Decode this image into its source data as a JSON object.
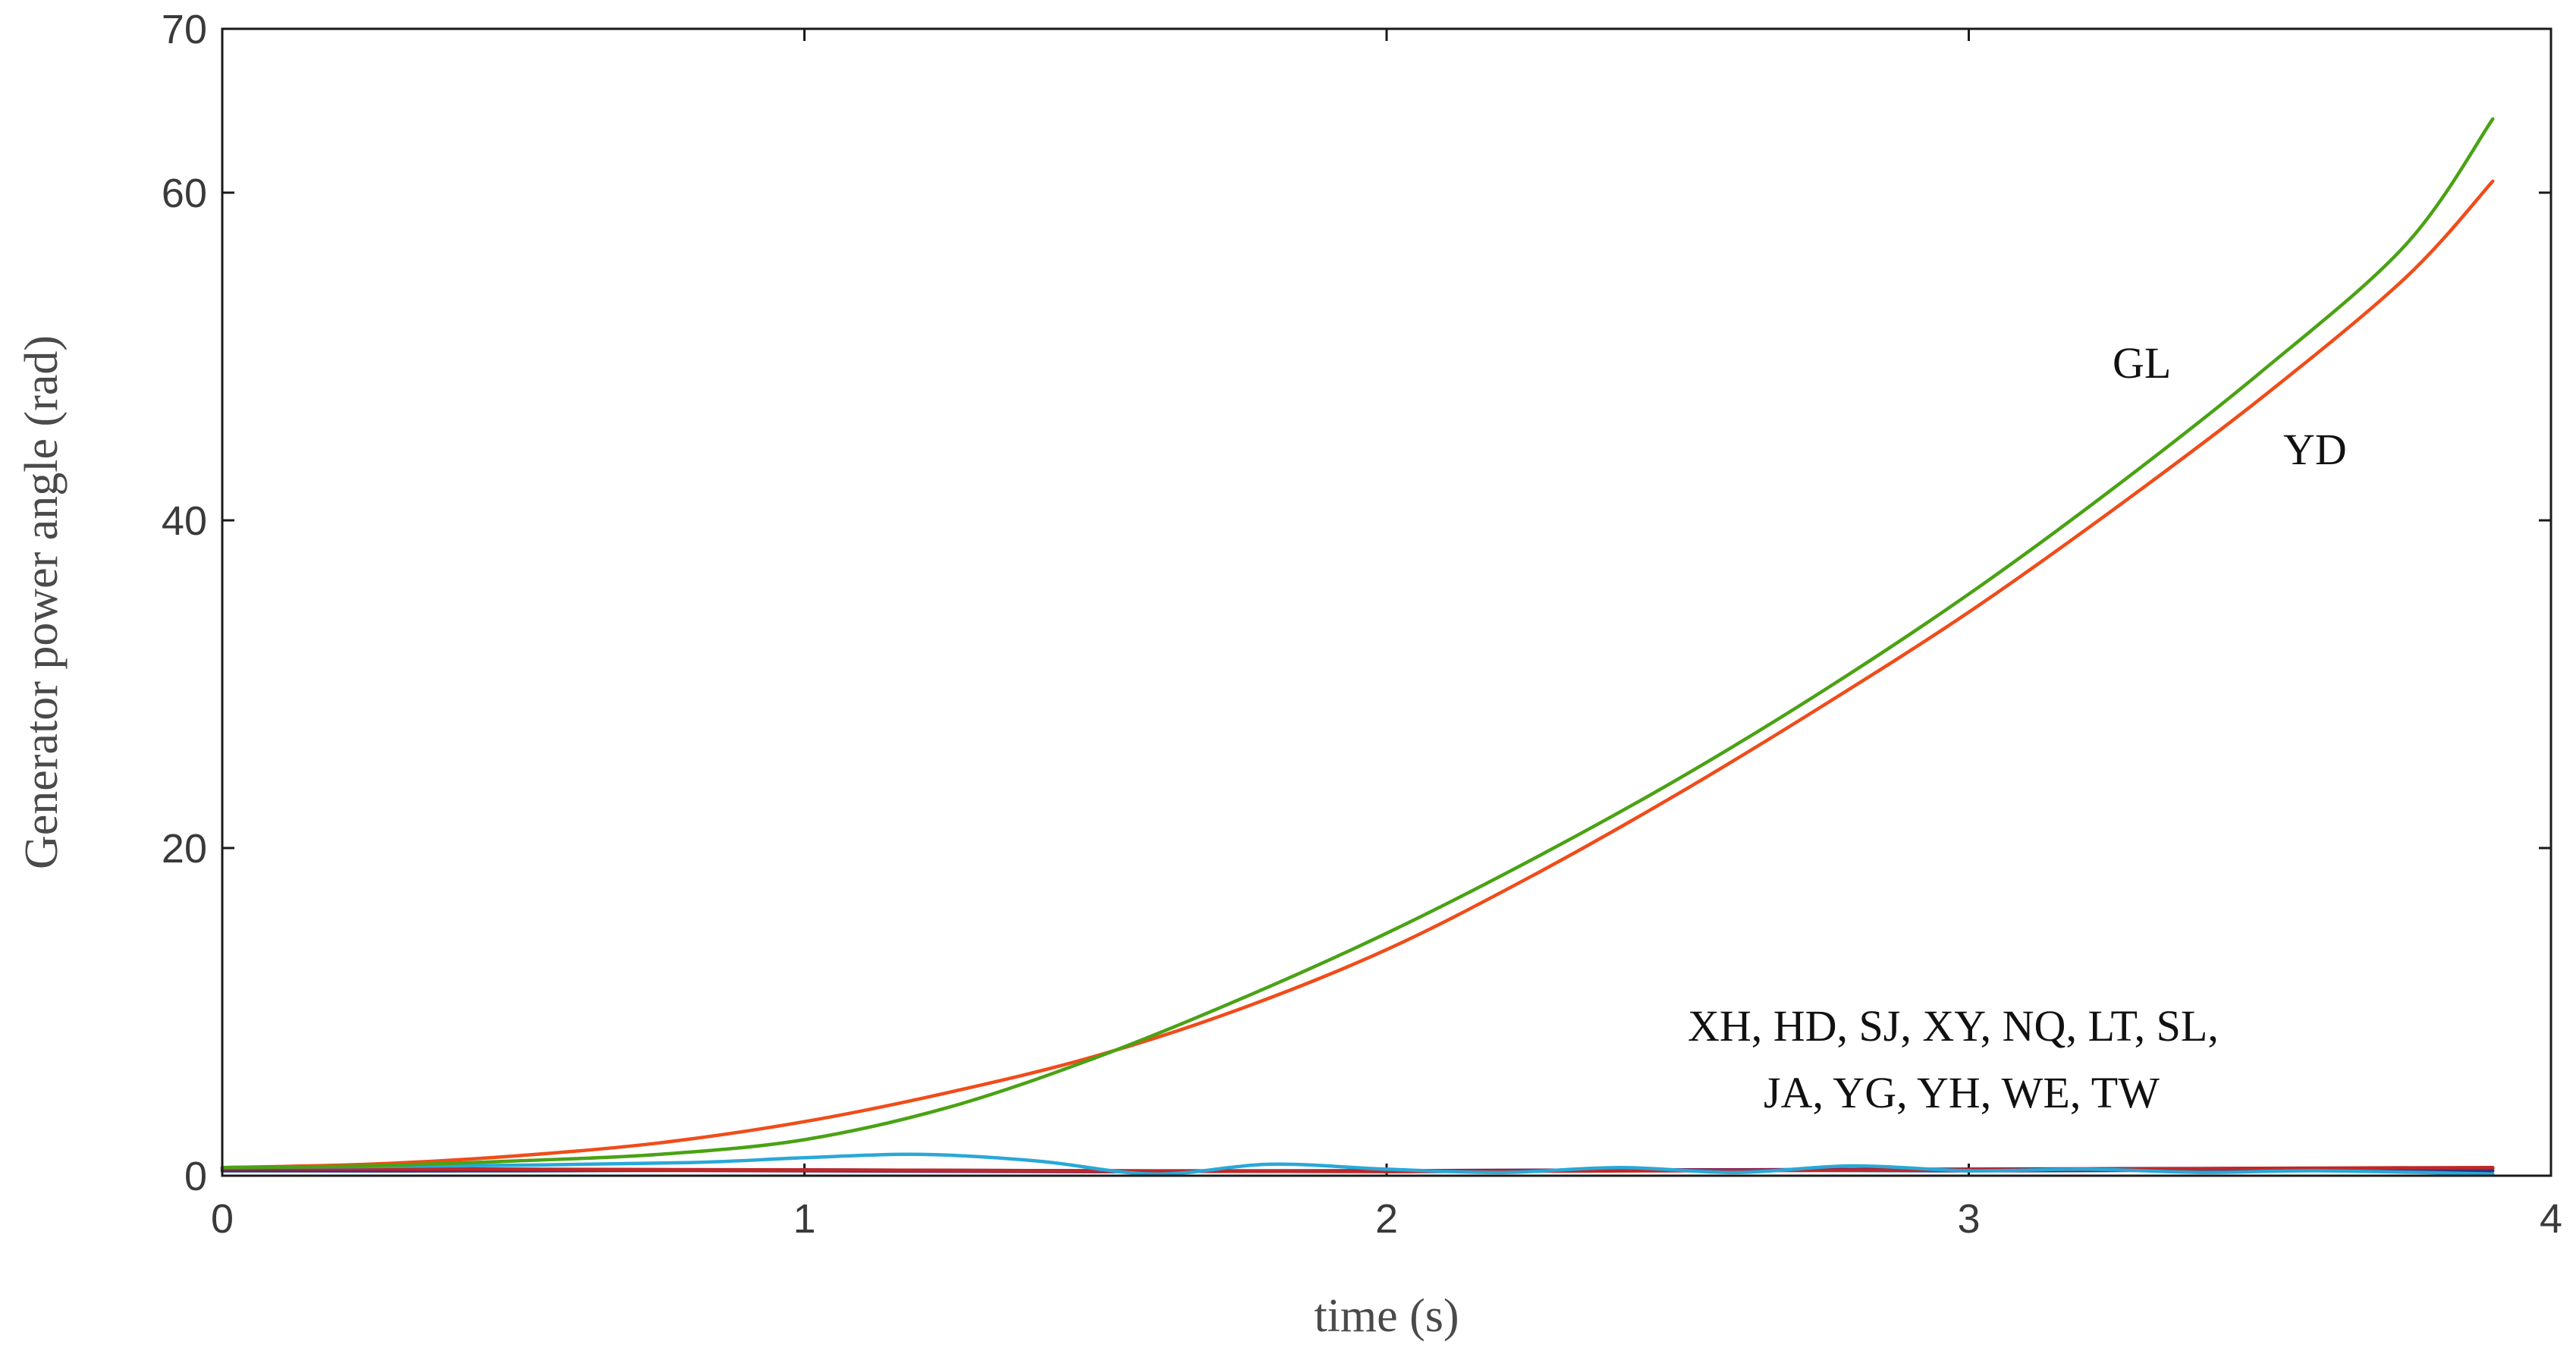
{
  "chart_data": {
    "type": "line",
    "xlabel": "time (s)",
    "ylabel": "Generator power angle (rad)",
    "xlim": [
      0,
      4
    ],
    "ylim": [
      0,
      70
    ],
    "xticks": [
      "0",
      "1",
      "2",
      "3",
      "4"
    ],
    "yticks": [
      "0",
      "20",
      "40",
      "60",
      "70"
    ],
    "grid": false,
    "annotations": [
      "GL",
      "YD",
      "XH, HD, SJ, XY, NQ, LT, SL,",
      "JA, YG, YH, WE, TW"
    ],
    "series": [
      {
        "name": "GL",
        "color": "#4aa214",
        "x": [
          0,
          0.25,
          0.5,
          0.75,
          1.0,
          1.25,
          1.5,
          1.75,
          2.0,
          2.25,
          2.5,
          2.75,
          3.0,
          3.25,
          3.5,
          3.75,
          3.9
        ],
        "y": [
          0.5,
          0.6,
          0.9,
          1.3,
          2.2,
          4.2,
          7.2,
          10.8,
          14.8,
          19.3,
          24.2,
          29.6,
          35.5,
          42.0,
          49.0,
          56.8,
          64.5
        ]
      },
      {
        "name": "YD",
        "color": "#f04c1a",
        "x": [
          0,
          0.25,
          0.5,
          0.75,
          1.0,
          1.25,
          1.5,
          1.75,
          2.0,
          2.25,
          2.5,
          2.75,
          3.0,
          3.25,
          3.5,
          3.75,
          3.9
        ],
        "y": [
          0.5,
          0.7,
          1.2,
          2.0,
          3.3,
          5.1,
          7.3,
          10.2,
          13.8,
          18.3,
          23.3,
          28.7,
          34.4,
          40.7,
          47.4,
          54.8,
          60.7
        ]
      },
      {
        "name": "XH, HD, SJ, XY, NQ, LT, SL, JA, YG, YH, WE, TW",
        "color": "#29a8d8",
        "x": [
          0,
          0.4,
          0.8,
          1.0,
          1.2,
          1.4,
          1.6,
          1.8,
          2.0,
          2.2,
          2.4,
          2.6,
          2.8,
          3.0,
          3.2,
          3.4,
          3.6,
          3.9
        ],
        "y": [
          0.5,
          0.6,
          0.8,
          1.1,
          1.3,
          0.9,
          0.1,
          0.7,
          0.4,
          0.2,
          0.5,
          0.2,
          0.6,
          0.3,
          0.4,
          0.2,
          0.3,
          0.1
        ]
      },
      {
        "name": "",
        "color": "#1f3a8a",
        "x": [
          0,
          0.5,
          1.0,
          1.5,
          2.0,
          2.5,
          3.0,
          3.5,
          3.9
        ],
        "y": [
          0.3,
          0.3,
          0.35,
          0.3,
          0.3,
          0.35,
          0.3,
          0.35,
          0.3
        ]
      },
      {
        "name": "",
        "color": "#7a1f5c",
        "x": [
          0,
          0.5,
          1.0,
          1.5,
          2.0,
          2.5,
          3.0,
          3.5,
          3.9
        ],
        "y": [
          0.4,
          0.35,
          0.3,
          0.25,
          0.3,
          0.35,
          0.4,
          0.45,
          0.45
        ]
      },
      {
        "name": "",
        "color": "#c02828",
        "x": [
          0,
          0.5,
          1.0,
          1.5,
          2.0,
          2.5,
          3.0,
          3.5,
          3.9
        ],
        "y": [
          0.45,
          0.4,
          0.35,
          0.3,
          0.25,
          0.3,
          0.35,
          0.45,
          0.5
        ]
      }
    ]
  }
}
